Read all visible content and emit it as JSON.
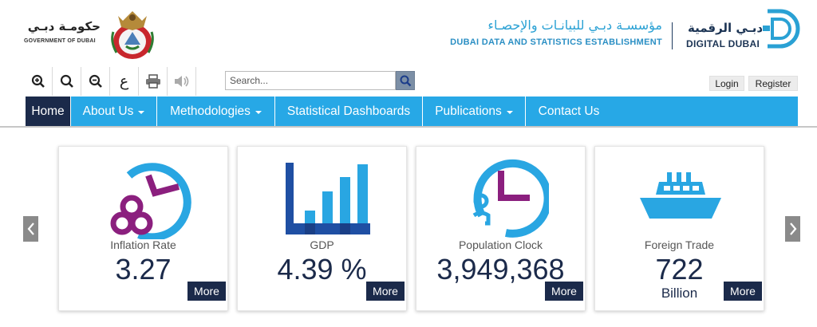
{
  "header": {
    "gov_ar": "حكومـة دبـي",
    "gov_en": "GOVERNMENT OF DUBAI",
    "dse_ar": "مؤسسـة دبـي للبيانـات والإحصـاء",
    "dse_en": "DUBAI DATA AND STATISTICS ESTABLISHMENT",
    "dd_ar": "دبـي الرقمية",
    "dd_en": "DIGITAL DUBAI"
  },
  "toolbar": {
    "arabic_letter": "ع",
    "icons": [
      "zoom-in-icon",
      "search-icon",
      "zoom-out-icon",
      "arabic-language-icon",
      "print-icon",
      "speaker-icon"
    ]
  },
  "search": {
    "placeholder": "Search..."
  },
  "auth": {
    "login": "Login",
    "register": "Register"
  },
  "nav": {
    "items": [
      {
        "label": "Home",
        "active": true,
        "dropdown": false
      },
      {
        "label": "About Us",
        "active": false,
        "dropdown": true
      },
      {
        "label": "Methodologies",
        "active": false,
        "dropdown": true
      },
      {
        "label": "Statistical Dashboards",
        "active": false,
        "dropdown": false
      },
      {
        "label": "Publications",
        "active": false,
        "dropdown": true
      },
      {
        "label": "Contact Us",
        "active": false,
        "dropdown": false
      }
    ]
  },
  "colors": {
    "accent": "#27a8e6",
    "navy": "#1b2a4a",
    "icon_blue": "#29a6e2",
    "icon_purple": "#8b1f7e",
    "gdp_blue": "#1f4fa3"
  },
  "cards": [
    {
      "title": "Inflation Rate",
      "value": "3.27",
      "sub": "",
      "icon": "inflation-clock-icon",
      "more": "More"
    },
    {
      "title": "GDP",
      "value": "4.39 %",
      "sub": "",
      "icon": "bar-chart-icon",
      "more": "More"
    },
    {
      "title": "Population Clock",
      "value": "3,949,368",
      "sub": "",
      "icon": "population-clock-icon",
      "more": "More"
    },
    {
      "title": "Foreign Trade",
      "value": "722",
      "sub": "Billion",
      "icon": "ship-icon",
      "more": "More"
    }
  ]
}
